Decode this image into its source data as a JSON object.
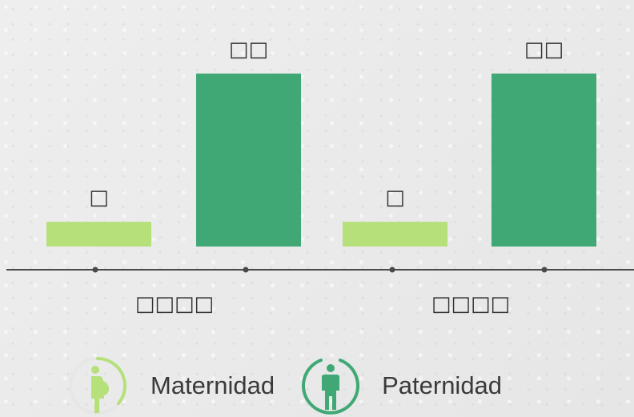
{
  "chart_data": {
    "type": "bar",
    "groups": [
      {
        "category_label": "□□□□",
        "bars": [
          {
            "series": "maternidad",
            "value": 1,
            "label": "□"
          },
          {
            "series": "paternidad",
            "value": 7,
            "label": "□□"
          }
        ]
      },
      {
        "category_label": "□□□□",
        "bars": [
          {
            "series": "maternidad",
            "value": 1,
            "label": "□"
          },
          {
            "series": "paternidad",
            "value": 7,
            "label": "□□"
          }
        ]
      }
    ],
    "series": [
      {
        "key": "maternidad",
        "name": "Maternidad",
        "color": "#b5e07a",
        "icon": "pregnant-woman-icon"
      },
      {
        "key": "paternidad",
        "name": "Paternidad",
        "color": "#3fa874",
        "icon": "man-icon"
      }
    ],
    "ylim": [
      0,
      8
    ],
    "axis_color": "#4a4a4a",
    "legend_position": "bottom-left"
  }
}
